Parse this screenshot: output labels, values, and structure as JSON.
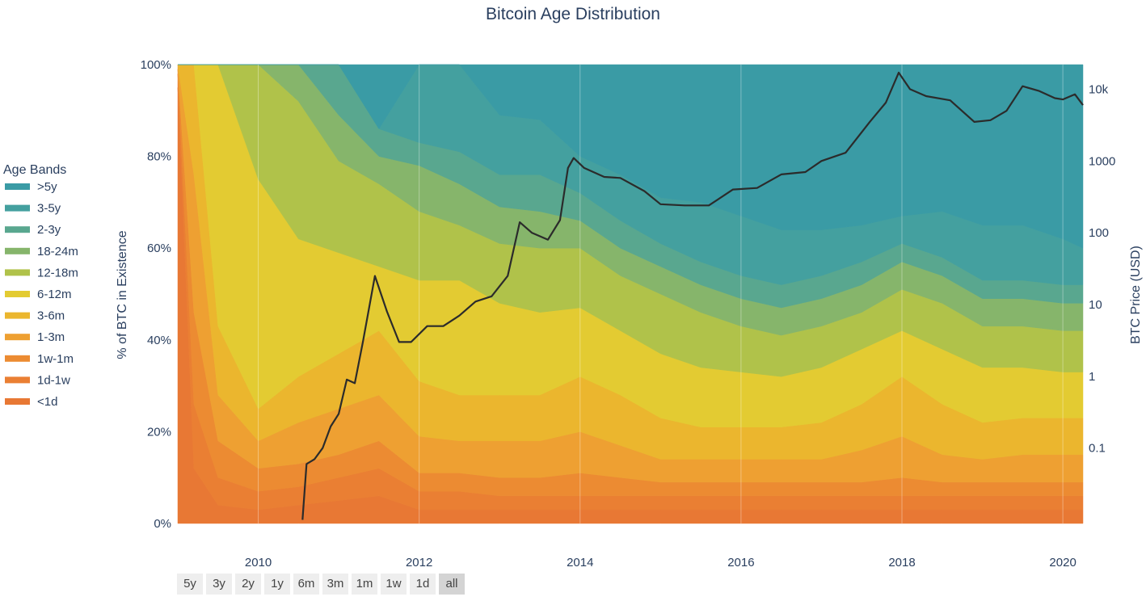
{
  "chart_data": {
    "type": "area",
    "title": "Bitcoin Age Distribution",
    "ylabel": "% of BTC in Existence",
    "y2label": "BTC Price (USD)",
    "legend": {
      "title": "Age Bands",
      "placement": "left",
      "entries": [
        {
          "name": ">5y",
          "color": "#3a9ba5"
        },
        {
          "name": "3-5y",
          "color": "#44a09f"
        },
        {
          "name": "2-3y",
          "color": "#59a78f"
        },
        {
          "name": "18-24m",
          "color": "#86b56b"
        },
        {
          "name": "12-18m",
          "color": "#b0c24a"
        },
        {
          "name": "6-12m",
          "color": "#e3cb32"
        },
        {
          "name": "3-6m",
          "color": "#ebb62e"
        },
        {
          "name": "1-3m",
          "color": "#eea032"
        },
        {
          "name": "1w-1m",
          "color": "#ec8b32"
        },
        {
          "name": "1d-1w",
          "color": "#ea7f33"
        },
        {
          "name": "<1d",
          "color": "#e87834"
        }
      ]
    },
    "x": [
      2009.0,
      2009.2,
      2009.5,
      2010.0,
      2010.5,
      2011.0,
      2011.5,
      2012.0,
      2012.5,
      2013.0,
      2013.5,
      2014.0,
      2014.5,
      2015.0,
      2015.5,
      2016.0,
      2016.5,
      2017.0,
      2017.5,
      2018.0,
      2018.5,
      2019.0,
      2019.5,
      2020.0,
      2020.25
    ],
    "series": [
      {
        "name": "<1d",
        "values": [
          95,
          12,
          4,
          3,
          4,
          5,
          6,
          3,
          3,
          3,
          3,
          3,
          3,
          3,
          3,
          3,
          3,
          3,
          3,
          3,
          3,
          3,
          3,
          3,
          3
        ]
      },
      {
        "name": "1d-1w",
        "values": [
          3,
          14,
          6,
          4,
          4,
          5,
          6,
          4,
          4,
          3,
          3,
          3,
          3,
          3,
          3,
          3,
          3,
          3,
          3,
          3,
          3,
          3,
          3,
          3,
          3
        ]
      },
      {
        "name": "1w-1m",
        "values": [
          1,
          20,
          8,
          5,
          5,
          5,
          6,
          4,
          4,
          4,
          4,
          5,
          4,
          3,
          3,
          3,
          3,
          3,
          3,
          4,
          3,
          3,
          3,
          3,
          3
        ]
      },
      {
        "name": "1-3m",
        "values": [
          1,
          30,
          10,
          6,
          9,
          10,
          10,
          8,
          7,
          8,
          8,
          9,
          7,
          5,
          5,
          5,
          5,
          5,
          7,
          9,
          6,
          5,
          6,
          6,
          6
        ]
      },
      {
        "name": "3-6m",
        "values": [
          0,
          24,
          15,
          7,
          10,
          12,
          14,
          12,
          10,
          10,
          10,
          12,
          11,
          9,
          7,
          7,
          7,
          8,
          10,
          13,
          11,
          8,
          8,
          8,
          8
        ]
      },
      {
        "name": "6-12m",
        "values": [
          0,
          0,
          57,
          50,
          30,
          22,
          14,
          22,
          25,
          20,
          18,
          15,
          14,
          14,
          13,
          12,
          11,
          12,
          12,
          10,
          12,
          12,
          11,
          10,
          10
        ]
      },
      {
        "name": "12-18m",
        "values": [
          0,
          0,
          0,
          25,
          30,
          20,
          18,
          15,
          12,
          13,
          14,
          13,
          12,
          13,
          12,
          10,
          9,
          9,
          8,
          9,
          10,
          9,
          9,
          9,
          9
        ]
      },
      {
        "name": "18-24m",
        "values": [
          0,
          0,
          0,
          0,
          8,
          10,
          6,
          10,
          9,
          8,
          8,
          6,
          6,
          6,
          6,
          6,
          6,
          6,
          6,
          6,
          6,
          6,
          6,
          6,
          6
        ]
      },
      {
        "name": "2-3y",
        "values": [
          0,
          0,
          0,
          0,
          0,
          11,
          6,
          5,
          7,
          7,
          8,
          6,
          6,
          5,
          5,
          5,
          5,
          5,
          5,
          4,
          4,
          4,
          4,
          4,
          4
        ]
      },
      {
        "name": "3-5y",
        "values": [
          0,
          0,
          0,
          0,
          0,
          0,
          0,
          17,
          19,
          13,
          12,
          8,
          10,
          10,
          13,
          13,
          12,
          10,
          8,
          6,
          10,
          12,
          12,
          10,
          8
        ]
      },
      {
        "name": ">5y",
        "values": [
          0,
          0,
          0,
          0,
          0,
          0,
          0,
          0,
          0,
          11,
          12,
          20,
          24,
          29,
          30,
          33,
          36,
          36,
          35,
          33,
          32,
          35,
          35,
          37,
          40
        ]
      }
    ],
    "price_line": {
      "x": [
        2010.55,
        2010.6,
        2010.7,
        2010.8,
        2010.9,
        2011.0,
        2011.1,
        2011.2,
        2011.3,
        2011.45,
        2011.6,
        2011.75,
        2011.9,
        2012.1,
        2012.3,
        2012.5,
        2012.7,
        2012.9,
        2013.1,
        2013.25,
        2013.4,
        2013.6,
        2013.75,
        2013.85,
        2013.92,
        2014.05,
        2014.3,
        2014.5,
        2014.8,
        2015.0,
        2015.3,
        2015.6,
        2015.9,
        2016.2,
        2016.5,
        2016.8,
        2017.0,
        2017.3,
        2017.6,
        2017.8,
        2017.96,
        2018.1,
        2018.3,
        2018.6,
        2018.9,
        2019.1,
        2019.3,
        2019.5,
        2019.7,
        2019.9,
        2020.0,
        2020.15,
        2020.25
      ],
      "y": [
        0.01,
        0.06,
        0.07,
        0.1,
        0.2,
        0.3,
        0.9,
        0.8,
        3,
        25,
        8,
        3,
        3,
        5,
        5,
        7,
        11,
        13,
        25,
        140,
        100,
        80,
        150,
        800,
        1100,
        800,
        600,
        580,
        380,
        250,
        240,
        240,
        400,
        420,
        650,
        700,
        1000,
        1300,
        3500,
        6500,
        17000,
        10000,
        8000,
        7000,
        3500,
        3700,
        5000,
        11000,
        9500,
        7500,
        7200,
        8500,
        6000
      ]
    },
    "x_ticks": [
      "2010",
      "2012",
      "2014",
      "2016",
      "2018",
      "2020"
    ],
    "x_tick_values": [
      2010,
      2012,
      2014,
      2016,
      2018,
      2020
    ],
    "y_ticks": [
      "0%",
      "20%",
      "40%",
      "60%",
      "80%",
      "100%"
    ],
    "y_tick_values": [
      0,
      20,
      40,
      60,
      80,
      100
    ],
    "y2_ticks": [
      "0.1",
      "1",
      "10",
      "100",
      "1000",
      "10k"
    ],
    "y2_tick_values": [
      0.1,
      1,
      10,
      100,
      1000,
      10000
    ],
    "xlim": [
      2009.0,
      2020.25
    ],
    "ylim": [
      0,
      100
    ],
    "y2_scale": "log",
    "y2lim": [
      0.0089,
      22000
    ],
    "grid": true
  },
  "range_buttons": [
    {
      "label": "5y"
    },
    {
      "label": "3y"
    },
    {
      "label": "2y"
    },
    {
      "label": "1y"
    },
    {
      "label": "6m"
    },
    {
      "label": "3m"
    },
    {
      "label": "1m"
    },
    {
      "label": "1w"
    },
    {
      "label": "1d"
    },
    {
      "label": "all",
      "active": true
    }
  ]
}
